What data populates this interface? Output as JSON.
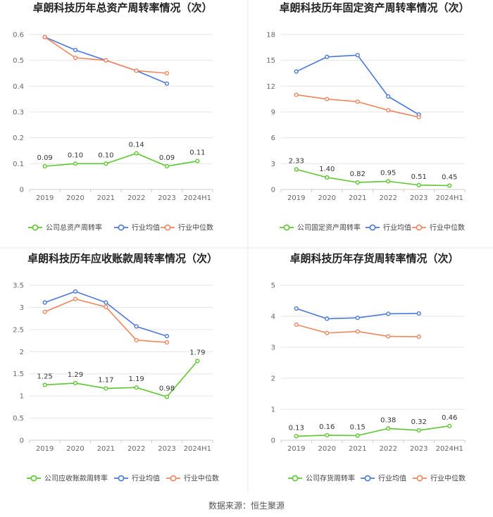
{
  "source": "数据来源：恒生聚源",
  "colors": {
    "company": "#5cc72e",
    "industry_avg": "#4a78d6",
    "industry_median": "#f0855c",
    "grid": "#e6e6e6",
    "axis": "#cccccc",
    "divider": "#e8e8e8"
  },
  "chart_data": [
    {
      "type": "line",
      "title": "卓朗科技历年总资产周转率情况（次）",
      "categories": [
        "2019",
        "2020",
        "2021",
        "2022",
        "2023",
        "2024H1"
      ],
      "yticks": [
        "0",
        "0.1",
        "0.2",
        "0.3",
        "0.4",
        "0.5",
        "0.6"
      ],
      "ylim": [
        0,
        0.6
      ],
      "series": [
        {
          "name": "公司总资产周转率",
          "color": "#5cc72e",
          "values": [
            0.09,
            0.1,
            0.1,
            0.14,
            0.09,
            0.11
          ],
          "labels": [
            "0.09",
            "0.10",
            "0.10",
            "0.14",
            "0.09",
            "0.11"
          ]
        },
        {
          "name": "行业均值",
          "color": "#4a78d6",
          "values": [
            0.59,
            0.54,
            0.5,
            0.46,
            0.41,
            null
          ]
        },
        {
          "name": "行业中位数",
          "color": "#f0855c",
          "values": [
            0.59,
            0.51,
            0.5,
            0.46,
            0.45,
            null
          ]
        }
      ]
    },
    {
      "type": "line",
      "title": "卓朗科技历年固定资产周转率情况（次）",
      "categories": [
        "2019",
        "2020",
        "2021",
        "2022",
        "2023",
        "2024H1"
      ],
      "yticks": [
        "0",
        "3",
        "6",
        "9",
        "12",
        "15",
        "18"
      ],
      "ylim": [
        0,
        18
      ],
      "series": [
        {
          "name": "公司固定资产周转率",
          "color": "#5cc72e",
          "values": [
            2.33,
            1.4,
            0.82,
            0.95,
            0.51,
            0.45
          ],
          "labels": [
            "2.33",
            "1.40",
            "0.82",
            "0.95",
            "0.51",
            "0.45"
          ]
        },
        {
          "name": "行业均值",
          "color": "#4a78d6",
          "values": [
            13.7,
            15.4,
            15.6,
            10.8,
            8.7,
            null
          ]
        },
        {
          "name": "行业中位数",
          "color": "#f0855c",
          "values": [
            11.0,
            10.5,
            10.2,
            9.2,
            8.4,
            null
          ]
        }
      ]
    },
    {
      "type": "line",
      "title": "卓朗科技历年应收账款周转率情况（次）",
      "categories": [
        "2019",
        "2020",
        "2021",
        "2022",
        "2023",
        "2024H1"
      ],
      "yticks": [
        "0",
        "0.5",
        "1",
        "1.5",
        "2",
        "2.5",
        "3",
        "3.5"
      ],
      "ylim": [
        0,
        3.5
      ],
      "series": [
        {
          "name": "公司应收账款周转率",
          "color": "#5cc72e",
          "values": [
            1.25,
            1.29,
            1.17,
            1.19,
            0.98,
            1.79
          ],
          "labels": [
            "1.25",
            "1.29",
            "1.17",
            "1.19",
            "0.98",
            "1.79"
          ]
        },
        {
          "name": "行业均值",
          "color": "#4a78d6",
          "values": [
            3.11,
            3.36,
            3.11,
            2.57,
            2.35,
            null
          ]
        },
        {
          "name": "行业中位数",
          "color": "#f0855c",
          "values": [
            2.9,
            3.19,
            3.01,
            2.26,
            2.21,
            null
          ]
        }
      ]
    },
    {
      "type": "line",
      "title": "卓朗科技历年存货周转率情况（次）",
      "categories": [
        "2019",
        "2020",
        "2021",
        "2022",
        "2023",
        "2024H1"
      ],
      "yticks": [
        "0",
        "1",
        "2",
        "3",
        "4",
        "5"
      ],
      "ylim": [
        0,
        5
      ],
      "series": [
        {
          "name": "公司存货周转率",
          "color": "#5cc72e",
          "values": [
            0.13,
            0.16,
            0.15,
            0.38,
            0.32,
            0.46
          ],
          "labels": [
            "0.13",
            "0.16",
            "0.15",
            "0.38",
            "0.32",
            "0.46"
          ]
        },
        {
          "name": "行业均值",
          "color": "#4a78d6",
          "values": [
            4.25,
            3.92,
            3.95,
            4.08,
            4.09,
            null
          ]
        },
        {
          "name": "行业中位数",
          "color": "#f0855c",
          "values": [
            3.73,
            3.46,
            3.51,
            3.35,
            3.34,
            null
          ]
        }
      ]
    }
  ]
}
